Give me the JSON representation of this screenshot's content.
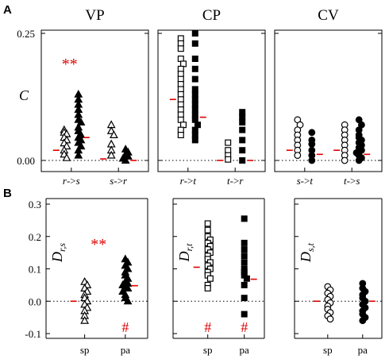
{
  "panel_labels": {
    "a": "A",
    "b": "B"
  },
  "colors": {
    "axis": "#000000",
    "median": "#e00000",
    "significance": "#e00000"
  },
  "chart_data": [
    {
      "type": "scatter",
      "id": "A",
      "ylabel": "C",
      "ylim": [
        0,
        0.25
      ],
      "yticks": [
        "0.00",
        "0.25"
      ],
      "panels": [
        {
          "title": "VP",
          "marker": "triangle",
          "groups": [
            {
              "label": "r->s",
              "lhs": "r",
              "rhs": "s",
              "arrow": "->",
              "open": [
                0.06,
                0.055,
                0.052,
                0.045,
                0.04,
                0.034,
                0.028,
                0.02,
                0.012,
                0.005
              ],
              "filled": [
                0.13,
                0.12,
                0.11,
                0.1,
                0.09,
                0.08,
                0.075,
                0.065,
                0.058,
                0.05,
                0.045,
                0.04,
                0.035,
                0.028,
                0.02,
                0.01
              ],
              "median_open": 0.02,
              "median_filled": 0.045,
              "significance": "**"
            },
            {
              "label": "s->r",
              "lhs": "s",
              "rhs": "r",
              "arrow": "->",
              "open": [
                0.07,
                0.058,
                0.05,
                0.032,
                0.02,
                0.01
              ],
              "filled": [
                0.022,
                0.016,
                0.012,
                0.008,
                0.004,
                0.0
              ],
              "median_open": 0.003,
              "median_filled": 0.0
            }
          ]
        },
        {
          "title": "CP",
          "marker": "square",
          "groups": [
            {
              "label": "r->t",
              "lhs": "r",
              "rhs": "t",
              "arrow": "->",
              "open": [
                0.24,
                0.23,
                0.22,
                0.2,
                0.19,
                0.18,
                0.17,
                0.16,
                0.15,
                0.14,
                0.13,
                0.12,
                0.11,
                0.1,
                0.09,
                0.08,
                0.07,
                0.06,
                0.05
              ],
              "filled": [
                0.25,
                0.23,
                0.2,
                0.18,
                0.16,
                0.14,
                0.13,
                0.12,
                0.11,
                0.1,
                0.09,
                0.08,
                0.07,
                0.06,
                0.05,
                0.04
              ],
              "median_open": 0.12,
              "median_filled": 0.085
            },
            {
              "label": "t->r",
              "lhs": "t",
              "rhs": "r",
              "arrow": "->",
              "open": [
                0.035,
                0.02,
                0.01,
                0.002
              ],
              "filled": [
                0.095,
                0.085,
                0.075,
                0.06,
                0.04,
                0.02,
                0.0
              ],
              "median_open": 0.0,
              "median_filled": 0.0
            }
          ]
        },
        {
          "title": "CV",
          "marker": "circle",
          "groups": [
            {
              "label": "s->t",
              "lhs": "s",
              "rhs": "t",
              "arrow": "->",
              "open": [
                0.08,
                0.07,
                0.06,
                0.05,
                0.04,
                0.03,
                0.02,
                0.01
              ],
              "filled": [
                0.055,
                0.04,
                0.032,
                0.02,
                0.01,
                0.0
              ],
              "median_open": 0.02,
              "median_filled": 0.012
            },
            {
              "label": "t->s",
              "lhs": "t",
              "rhs": "s",
              "arrow": "->",
              "open": [
                0.07,
                0.06,
                0.05,
                0.04,
                0.03,
                0.02,
                0.01,
                0.0
              ],
              "filled": [
                0.08,
                0.07,
                0.06,
                0.05,
                0.045,
                0.04,
                0.035,
                0.03,
                0.025,
                0.02,
                0.015,
                0.01,
                0.005,
                0.0
              ],
              "median_open": 0.02,
              "median_filled": 0.012
            }
          ]
        }
      ]
    },
    {
      "type": "scatter",
      "id": "B",
      "ylim": [
        -0.1,
        0.3
      ],
      "yticks": [
        "-0.1",
        "0.0",
        "0.1",
        "0.2",
        "0.3"
      ],
      "ytick_values": [
        -0.1,
        0.0,
        0.1,
        0.2,
        0.3
      ],
      "panels": [
        {
          "ylabel": "D",
          "ylabel_sub": "r,s",
          "marker": "triangle",
          "categories": [
            "sp",
            "pa"
          ],
          "open": [
            0.06,
            0.05,
            0.04,
            0.03,
            0.02,
            0.01,
            0.0,
            -0.01,
            -0.02,
            -0.03,
            -0.045,
            -0.06
          ],
          "filled": [
            0.13,
            0.12,
            0.11,
            0.1,
            0.09,
            0.08,
            0.07,
            0.06,
            0.055,
            0.05,
            0.045,
            0.04,
            0.03,
            0.02,
            0.01,
            0.0
          ],
          "median_open": 0.0,
          "median_filled": 0.048,
          "significance": "**",
          "hash_sp": "",
          "hash_pa": "#"
        },
        {
          "ylabel": "D",
          "ylabel_sub": "r,t",
          "marker": "square",
          "categories": [
            "sp",
            "pa"
          ],
          "open": [
            0.24,
            0.22,
            0.2,
            0.19,
            0.18,
            0.17,
            0.16,
            0.15,
            0.14,
            0.13,
            0.12,
            0.11,
            0.1,
            0.09,
            0.08,
            0.07,
            0.05,
            0.04
          ],
          "filled": [
            0.255,
            0.18,
            0.16,
            0.14,
            0.12,
            0.1,
            0.09,
            0.08,
            0.07,
            0.05,
            0.01,
            -0.04
          ],
          "median_open": 0.105,
          "median_filled": 0.068,
          "hash_sp": "#",
          "hash_pa": "#"
        },
        {
          "ylabel": "D",
          "ylabel_sub": "s,t",
          "marker": "circle",
          "categories": [
            "sp",
            "pa"
          ],
          "open": [
            0.045,
            0.035,
            0.025,
            0.015,
            0.005,
            -0.005,
            -0.015,
            -0.025,
            -0.035,
            -0.045,
            -0.055
          ],
          "filled": [
            0.055,
            0.04,
            0.03,
            0.02,
            0.01,
            0.0,
            -0.01,
            -0.02,
            -0.03,
            -0.04,
            -0.05,
            -0.06
          ],
          "median_open": 0.0,
          "median_filled": 0.0,
          "hash_sp": "",
          "hash_pa": ""
        }
      ]
    }
  ]
}
